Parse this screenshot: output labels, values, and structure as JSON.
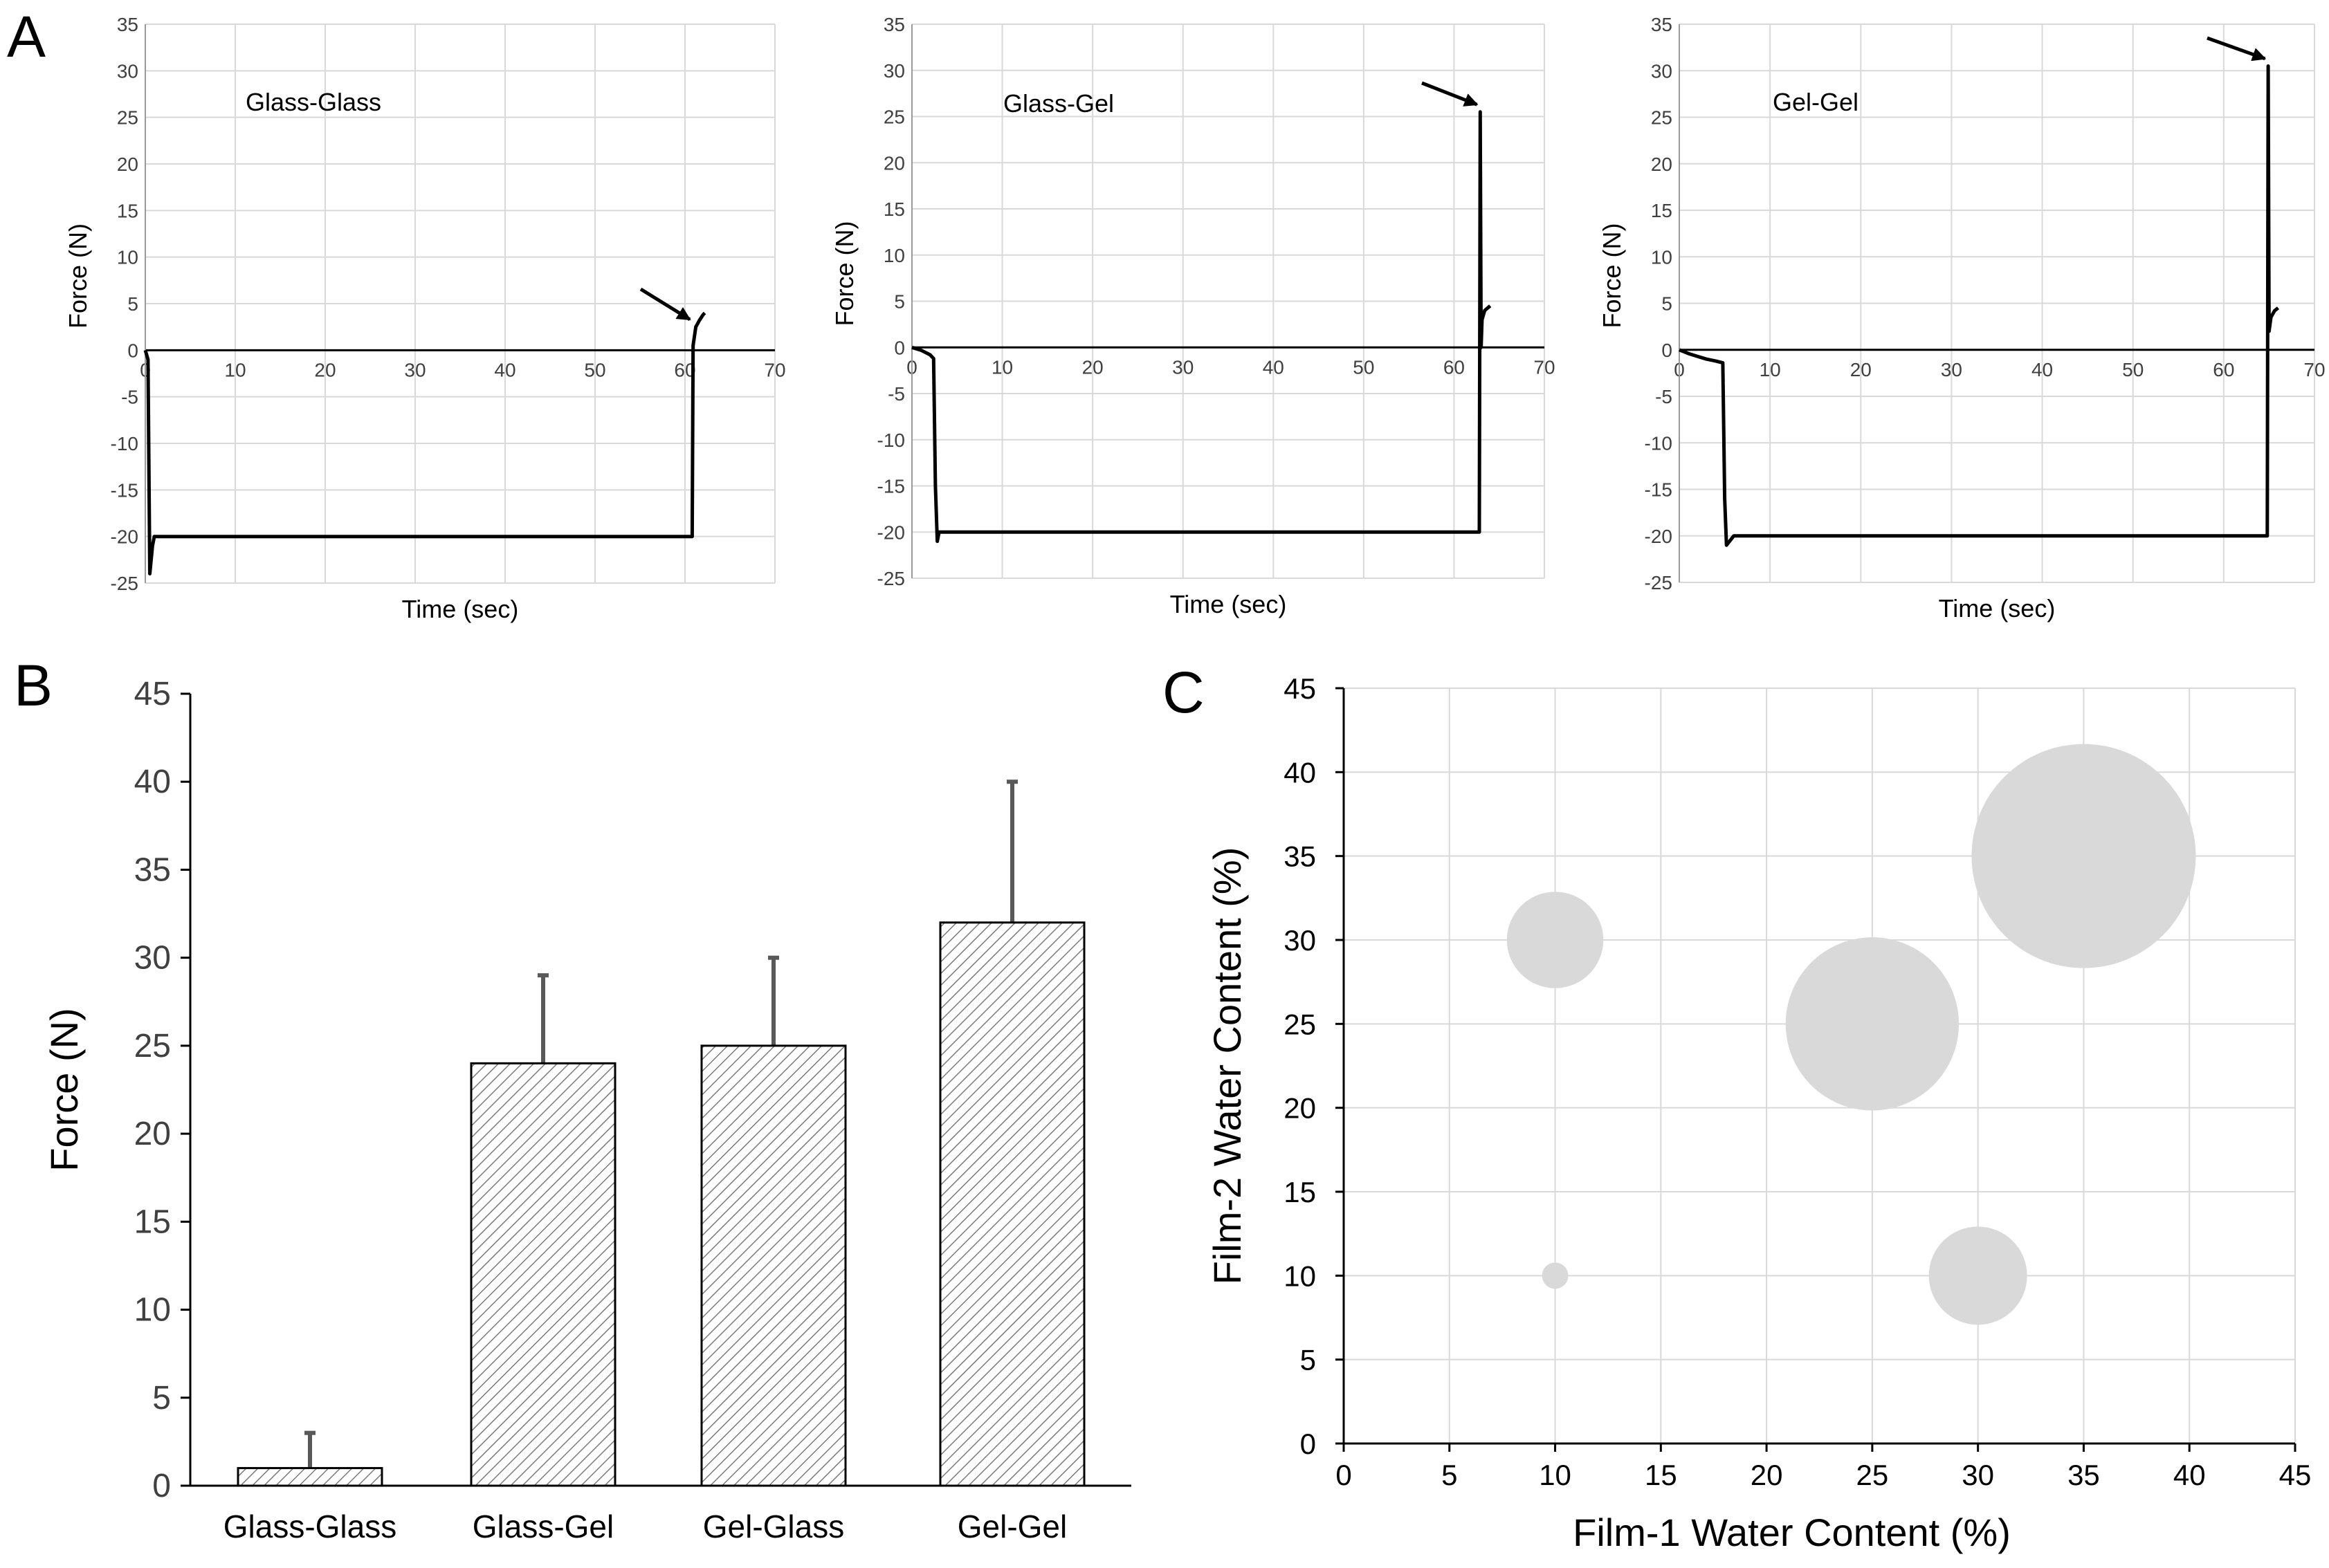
{
  "chart_data": [
    {
      "panel": "A",
      "type": "line",
      "title": "Glass-Glass",
      "xlabel": "Time (sec)",
      "ylabel": "Force (N)",
      "xlim": [
        0,
        70
      ],
      "ylim": [
        -25,
        35
      ],
      "x_ticks": [
        0,
        10,
        20,
        30,
        40,
        50,
        60,
        70
      ],
      "y_ticks": [
        -25,
        -20,
        -15,
        -10,
        -5,
        0,
        5,
        10,
        15,
        20,
        25,
        30,
        35
      ],
      "grid": true,
      "series": [
        {
          "name": "Glass-Glass",
          "x": [
            0,
            0.3,
            0.5,
            0.8,
            1,
            5,
            20,
            40,
            60,
            60.8,
            60.9,
            61.2,
            61.6,
            62,
            62.2
          ],
          "y": [
            0,
            -1,
            -24,
            -21,
            -20,
            -20,
            -20,
            -20,
            -20,
            -20,
            0.5,
            2.5,
            3.2,
            3.8,
            4
          ]
        }
      ],
      "annotations": [
        {
          "type": "arrow",
          "text": "",
          "x": 61,
          "y": 3
        }
      ]
    },
    {
      "panel": "A",
      "type": "line",
      "title": "Glass-Gel",
      "xlabel": "Time (sec)",
      "ylabel": "Force (N)",
      "xlim": [
        0,
        70
      ],
      "ylim": [
        -25,
        35
      ],
      "x_ticks": [
        0,
        10,
        20,
        30,
        40,
        50,
        60,
        70
      ],
      "y_ticks": [
        -25,
        -20,
        -15,
        -10,
        -5,
        0,
        5,
        10,
        15,
        20,
        25,
        30,
        35
      ],
      "grid": true,
      "series": [
        {
          "name": "Glass-Gel",
          "x": [
            0,
            1,
            2,
            2.4,
            2.6,
            2.8,
            3,
            10,
            30,
            50,
            62.8,
            62.9,
            63.0,
            63.1,
            63.4,
            64
          ],
          "y": [
            0,
            -0.3,
            -0.8,
            -1.2,
            -15,
            -21,
            -20,
            -20,
            -20,
            -20,
            -20,
            25.5,
            0,
            3,
            4,
            4.5
          ]
        }
      ],
      "annotations": [
        {
          "type": "arrow",
          "text": "",
          "x": 63,
          "y": 26
        }
      ]
    },
    {
      "panel": "A",
      "type": "line",
      "title": "Gel-Gel",
      "xlabel": "Time (sec)",
      "ylabel": "Force (N)",
      "xlim": [
        0,
        70
      ],
      "ylim": [
        -25,
        35
      ],
      "x_ticks": [
        0,
        10,
        20,
        30,
        40,
        50,
        60,
        70
      ],
      "y_ticks": [
        -25,
        -20,
        -15,
        -10,
        -5,
        0,
        5,
        10,
        15,
        20,
        25,
        30,
        35
      ],
      "grid": true,
      "series": [
        {
          "name": "Gel-Gel",
          "x": [
            0,
            1,
            2,
            3,
            4,
            4.8,
            5,
            5.2,
            6,
            20,
            40,
            60,
            64.8,
            64.9,
            65.0,
            65.2,
            65.6,
            66
          ],
          "y": [
            0,
            -0.4,
            -0.7,
            -1.0,
            -1.2,
            -1.4,
            -16,
            -21,
            -20,
            -20,
            -20,
            -20,
            -20,
            30.5,
            2,
            3.5,
            4.2,
            4.5
          ]
        }
      ],
      "annotations": [
        {
          "type": "arrow",
          "text": "",
          "x": 65,
          "y": 31
        }
      ]
    },
    {
      "panel": "B",
      "type": "bar",
      "categories": [
        "Glass-Glass",
        "Glass-Gel",
        "Gel-Glass",
        "Gel-Gel"
      ],
      "values": [
        1,
        24,
        25,
        32
      ],
      "error_upper": [
        2,
        5,
        5,
        8
      ],
      "title": "",
      "xlabel": "",
      "ylabel": "Force (N)",
      "ylim": [
        0,
        45
      ],
      "y_ticks": [
        0,
        5,
        10,
        15,
        20,
        25,
        30,
        35,
        40,
        45
      ],
      "grid": false
    },
    {
      "panel": "C",
      "type": "scatter",
      "subtype": "bubble",
      "title": "",
      "xlabel": "Film-1 Water Content (%)",
      "ylabel": "Film-2 Water Content (%)",
      "xlim": [
        0,
        45
      ],
      "ylim": [
        0,
        45
      ],
      "x_ticks": [
        0,
        5,
        10,
        15,
        20,
        25,
        30,
        35,
        40,
        45
      ],
      "y_ticks": [
        0,
        5,
        10,
        15,
        20,
        25,
        30,
        35,
        40,
        45
      ],
      "grid": true,
      "points": [
        {
          "x": 10,
          "y": 10,
          "size": 1
        },
        {
          "x": 10,
          "y": 30,
          "size": 24
        },
        {
          "x": 30,
          "y": 10,
          "size": 25
        },
        {
          "x": 25,
          "y": 25,
          "size": 84
        },
        {
          "x": 35,
          "y": 35,
          "size": 144
        }
      ],
      "bubble_color": "#d9d9d9"
    }
  ],
  "panel_letters": {
    "a": "A",
    "b": "B",
    "c": "C"
  }
}
